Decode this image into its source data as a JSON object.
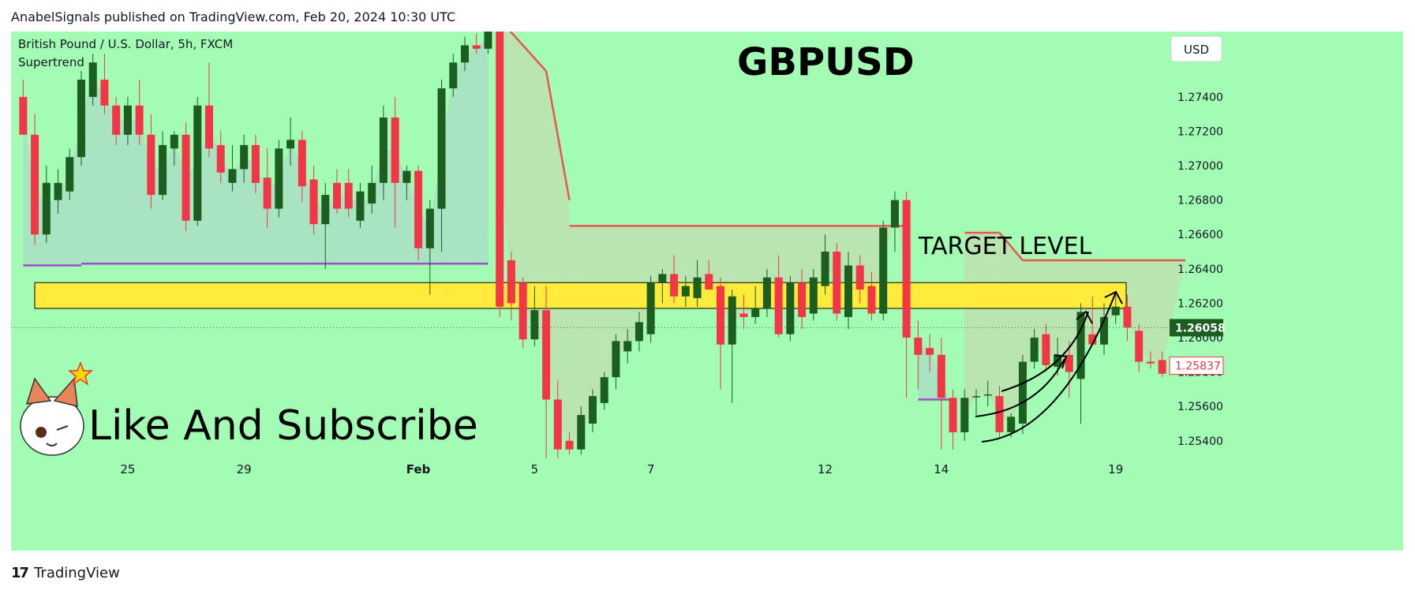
{
  "header": {
    "publish_line": "AnabelSignals published on TradingView.com, Feb 20, 2024 10:30 UTC"
  },
  "footer": {
    "brand_mark": "17",
    "brand_name": "TradingView"
  },
  "colors": {
    "background": "#a2fcb4",
    "bull": "#1b5e20",
    "bear": "#f23645",
    "supertrend_up": "#9c4dcc",
    "supertrend_down": "#ef5350",
    "zone": "#ffeb3b"
  },
  "chart_data": {
    "type": "candlestick",
    "symbol_line": "British Pound / U.S. Dollar, 5h, FXCM",
    "indicator": "Supertrend",
    "title": "GBPUSD",
    "currency": "USD",
    "ylim": [
      1.2528,
      1.2778
    ],
    "y_ticks": [
      "1.27400",
      "1.27200",
      "1.27000",
      "1.26800",
      "1.26600",
      "1.26400",
      "1.26200",
      "1.26000",
      "1.25800",
      "1.25600",
      "1.25400"
    ],
    "x_ticks": [
      {
        "label": "25",
        "index": 9
      },
      {
        "label": "29",
        "index": 19
      },
      {
        "label": "Feb",
        "index": 34
      },
      {
        "label": "5",
        "index": 44
      },
      {
        "label": "7",
        "index": 54
      },
      {
        "label": "12",
        "index": 69
      },
      {
        "label": "14",
        "index": 79
      },
      {
        "label": "19",
        "index": 94
      }
    ],
    "last_price": "1.26058",
    "current_price": "1.25837",
    "zone": {
      "low": 1.2617,
      "high": 1.2632,
      "label": "TARGET LEVEL"
    },
    "annotation": "Like And Subscribe",
    "candles": [
      {
        "o": 1.274,
        "h": 1.275,
        "l": 1.2718,
        "c": 1.2718
      },
      {
        "o": 1.2718,
        "h": 1.273,
        "l": 1.2654,
        "c": 1.266
      },
      {
        "o": 1.266,
        "h": 1.27,
        "l": 1.2655,
        "c": 1.269
      },
      {
        "o": 1.268,
        "h": 1.2698,
        "l": 1.2672,
        "c": 1.269
      },
      {
        "o": 1.2685,
        "h": 1.271,
        "l": 1.268,
        "c": 1.2705
      },
      {
        "o": 1.2705,
        "h": 1.2755,
        "l": 1.27,
        "c": 1.275
      },
      {
        "o": 1.274,
        "h": 1.2765,
        "l": 1.2735,
        "c": 1.276
      },
      {
        "o": 1.275,
        "h": 1.2765,
        "l": 1.273,
        "c": 1.2735
      },
      {
        "o": 1.2735,
        "h": 1.274,
        "l": 1.2712,
        "c": 1.2718
      },
      {
        "o": 1.2718,
        "h": 1.274,
        "l": 1.2712,
        "c": 1.2735
      },
      {
        "o": 1.2735,
        "h": 1.275,
        "l": 1.2712,
        "c": 1.2718
      },
      {
        "o": 1.2718,
        "h": 1.273,
        "l": 1.2675,
        "c": 1.2683
      },
      {
        "o": 1.2683,
        "h": 1.272,
        "l": 1.268,
        "c": 1.2712
      },
      {
        "o": 1.271,
        "h": 1.272,
        "l": 1.27,
        "c": 1.2718
      },
      {
        "o": 1.2718,
        "h": 1.2725,
        "l": 1.2662,
        "c": 1.2668
      },
      {
        "o": 1.2668,
        "h": 1.274,
        "l": 1.2665,
        "c": 1.2735
      },
      {
        "o": 1.2735,
        "h": 1.276,
        "l": 1.2705,
        "c": 1.271
      },
      {
        "o": 1.2712,
        "h": 1.272,
        "l": 1.269,
        "c": 1.2696
      },
      {
        "o": 1.269,
        "h": 1.2712,
        "l": 1.2685,
        "c": 1.2698
      },
      {
        "o": 1.2698,
        "h": 1.2718,
        "l": 1.269,
        "c": 1.2712
      },
      {
        "o": 1.2712,
        "h": 1.2718,
        "l": 1.2684,
        "c": 1.269
      },
      {
        "o": 1.2693,
        "h": 1.271,
        "l": 1.2664,
        "c": 1.2675
      },
      {
        "o": 1.2675,
        "h": 1.2715,
        "l": 1.267,
        "c": 1.271
      },
      {
        "o": 1.271,
        "h": 1.2728,
        "l": 1.27,
        "c": 1.2715
      },
      {
        "o": 1.2715,
        "h": 1.272,
        "l": 1.2679,
        "c": 1.2688
      },
      {
        "o": 1.2692,
        "h": 1.27,
        "l": 1.266,
        "c": 1.2666
      },
      {
        "o": 1.2666,
        "h": 1.269,
        "l": 1.264,
        "c": 1.2683
      },
      {
        "o": 1.269,
        "h": 1.2698,
        "l": 1.2672,
        "c": 1.2675
      },
      {
        "o": 1.269,
        "h": 1.2698,
        "l": 1.267,
        "c": 1.2675
      },
      {
        "o": 1.2668,
        "h": 1.269,
        "l": 1.2664,
        "c": 1.2685
      },
      {
        "o": 1.2678,
        "h": 1.27,
        "l": 1.2672,
        "c": 1.269
      },
      {
        "o": 1.269,
        "h": 1.2735,
        "l": 1.268,
        "c": 1.2728
      },
      {
        "o": 1.2728,
        "h": 1.274,
        "l": 1.2664,
        "c": 1.269
      },
      {
        "o": 1.269,
        "h": 1.27,
        "l": 1.268,
        "c": 1.2697
      },
      {
        "o": 1.2697,
        "h": 1.27,
        "l": 1.2645,
        "c": 1.2652
      },
      {
        "o": 1.2652,
        "h": 1.268,
        "l": 1.2625,
        "c": 1.2675
      },
      {
        "o": 1.2675,
        "h": 1.275,
        "l": 1.265,
        "c": 1.2745
      },
      {
        "o": 1.2745,
        "h": 1.2765,
        "l": 1.274,
        "c": 1.276
      },
      {
        "o": 1.276,
        "h": 1.2775,
        "l": 1.2755,
        "c": 1.277
      },
      {
        "o": 1.277,
        "h": 1.2777,
        "l": 1.2765,
        "c": 1.2768
      },
      {
        "o": 1.2768,
        "h": 1.2782,
        "l": 1.2765,
        "c": 1.278
      },
      {
        "o": 1.2783,
        "h": 1.279,
        "l": 1.2612,
        "c": 1.2618
      },
      {
        "o": 1.2645,
        "h": 1.265,
        "l": 1.261,
        "c": 1.262
      },
      {
        "o": 1.2632,
        "h": 1.2635,
        "l": 1.2594,
        "c": 1.2599
      },
      {
        "o": 1.2599,
        "h": 1.263,
        "l": 1.2595,
        "c": 1.2616
      },
      {
        "o": 1.2616,
        "h": 1.263,
        "l": 1.253,
        "c": 1.2564
      },
      {
        "o": 1.2564,
        "h": 1.2575,
        "l": 1.253,
        "c": 1.2535
      },
      {
        "o": 1.254,
        "h": 1.2545,
        "l": 1.2532,
        "c": 1.2535
      },
      {
        "o": 1.2535,
        "h": 1.256,
        "l": 1.2532,
        "c": 1.2555
      },
      {
        "o": 1.255,
        "h": 1.257,
        "l": 1.2545,
        "c": 1.2566
      },
      {
        "o": 1.2562,
        "h": 1.258,
        "l": 1.2558,
        "c": 1.2577
      },
      {
        "o": 1.2577,
        "h": 1.2602,
        "l": 1.257,
        "c": 1.2598
      },
      {
        "o": 1.2592,
        "h": 1.2605,
        "l": 1.2585,
        "c": 1.2598
      },
      {
        "o": 1.2598,
        "h": 1.2615,
        "l": 1.2592,
        "c": 1.2609
      },
      {
        "o": 1.2602,
        "h": 1.2636,
        "l": 1.2597,
        "c": 1.2632
      },
      {
        "o": 1.2632,
        "h": 1.264,
        "l": 1.262,
        "c": 1.2637
      },
      {
        "o": 1.2637,
        "h": 1.2648,
        "l": 1.262,
        "c": 1.2624
      },
      {
        "o": 1.2624,
        "h": 1.2636,
        "l": 1.2618,
        "c": 1.263
      },
      {
        "o": 1.2623,
        "h": 1.2645,
        "l": 1.2618,
        "c": 1.2635
      },
      {
        "o": 1.2637,
        "h": 1.2645,
        "l": 1.2628,
        "c": 1.2628
      },
      {
        "o": 1.263,
        "h": 1.2635,
        "l": 1.257,
        "c": 1.2596
      },
      {
        "o": 1.2596,
        "h": 1.2628,
        "l": 1.2562,
        "c": 1.2624
      },
      {
        "o": 1.2614,
        "h": 1.2625,
        "l": 1.2605,
        "c": 1.2612
      },
      {
        "o": 1.2612,
        "h": 1.263,
        "l": 1.2608,
        "c": 1.2617
      },
      {
        "o": 1.2617,
        "h": 1.264,
        "l": 1.2612,
        "c": 1.2635
      },
      {
        "o": 1.2635,
        "h": 1.2648,
        "l": 1.26,
        "c": 1.2602
      },
      {
        "o": 1.2602,
        "h": 1.2636,
        "l": 1.2598,
        "c": 1.2632
      },
      {
        "o": 1.2632,
        "h": 1.264,
        "l": 1.2605,
        "c": 1.2612
      },
      {
        "o": 1.2614,
        "h": 1.264,
        "l": 1.261,
        "c": 1.2635
      },
      {
        "o": 1.263,
        "h": 1.266,
        "l": 1.2625,
        "c": 1.265
      },
      {
        "o": 1.265,
        "h": 1.2655,
        "l": 1.261,
        "c": 1.2614
      },
      {
        "o": 1.2612,
        "h": 1.265,
        "l": 1.2605,
        "c": 1.2642
      },
      {
        "o": 1.2642,
        "h": 1.2648,
        "l": 1.262,
        "c": 1.2628
      },
      {
        "o": 1.263,
        "h": 1.2638,
        "l": 1.261,
        "c": 1.2614
      },
      {
        "o": 1.2614,
        "h": 1.2668,
        "l": 1.261,
        "c": 1.2664
      },
      {
        "o": 1.2664,
        "h": 1.2685,
        "l": 1.265,
        "c": 1.268
      },
      {
        "o": 1.268,
        "h": 1.2685,
        "l": 1.2565,
        "c": 1.26
      },
      {
        "o": 1.26,
        "h": 1.261,
        "l": 1.257,
        "c": 1.259
      },
      {
        "o": 1.2594,
        "h": 1.2602,
        "l": 1.258,
        "c": 1.259
      },
      {
        "o": 1.259,
        "h": 1.26,
        "l": 1.2535,
        "c": 1.2565
      },
      {
        "o": 1.2565,
        "h": 1.257,
        "l": 1.2535,
        "c": 1.2545
      },
      {
        "o": 1.2545,
        "h": 1.257,
        "l": 1.254,
        "c": 1.2565
      },
      {
        "o": 1.2566,
        "h": 1.257,
        "l": 1.2555,
        "c": 1.2566
      },
      {
        "o": 1.2567,
        "h": 1.2575,
        "l": 1.256,
        "c": 1.2567
      },
      {
        "o": 1.2566,
        "h": 1.2572,
        "l": 1.2542,
        "c": 1.2545
      },
      {
        "o": 1.2545,
        "h": 1.2556,
        "l": 1.2542,
        "c": 1.2554
      },
      {
        "o": 1.255,
        "h": 1.259,
        "l": 1.2544,
        "c": 1.2586
      },
      {
        "o": 1.2586,
        "h": 1.2605,
        "l": 1.2582,
        "c": 1.26
      },
      {
        "o": 1.2602,
        "h": 1.2608,
        "l": 1.258,
        "c": 1.2584
      },
      {
        "o": 1.2583,
        "h": 1.26,
        "l": 1.2578,
        "c": 1.259
      },
      {
        "o": 1.259,
        "h": 1.2598,
        "l": 1.2565,
        "c": 1.258
      },
      {
        "o": 1.2576,
        "h": 1.262,
        "l": 1.255,
        "c": 1.2615
      },
      {
        "o": 1.2602,
        "h": 1.2624,
        "l": 1.2595,
        "c": 1.2596
      },
      {
        "o": 1.2596,
        "h": 1.262,
        "l": 1.259,
        "c": 1.2612
      },
      {
        "o": 1.2613,
        "h": 1.2625,
        "l": 1.2608,
        "c": 1.2618
      },
      {
        "o": 1.2618,
        "h": 1.2625,
        "l": 1.2598,
        "c": 1.2606
      },
      {
        "o": 1.2604,
        "h": 1.2608,
        "l": 1.258,
        "c": 1.2586
      },
      {
        "o": 1.2586,
        "h": 1.2592,
        "l": 1.2582,
        "c": 1.2585
      },
      {
        "o": 1.2587,
        "h": 1.2592,
        "l": 1.2577,
        "c": 1.2579
      }
    ],
    "supertrend": [
      {
        "dir": "up",
        "from": 0,
        "to": 5,
        "v1": 1.2642,
        "v2": 1.2642
      },
      {
        "dir": "up",
        "from": 5,
        "to": 40,
        "v1": 1.2643,
        "v2": 1.2643
      },
      {
        "dir": "down",
        "from": 41,
        "to": 45,
        "v1": 1.2785,
        "v2": 1.2755
      },
      {
        "dir": "down",
        "from": 45,
        "to": 47,
        "v1": 1.2755,
        "v2": 1.268
      },
      {
        "dir": "down",
        "from": 47,
        "to": 76,
        "v1": 1.2665,
        "v2": 1.2665
      },
      {
        "dir": "up",
        "from": 77,
        "to": 80,
        "v1": 1.2564,
        "v2": 1.2564
      },
      {
        "dir": "down",
        "from": 81,
        "to": 84,
        "v1": 1.2661,
        "v2": 1.2661
      },
      {
        "dir": "down",
        "from": 84,
        "to": 86,
        "v1": 1.2661,
        "v2": 1.2645
      },
      {
        "dir": "down",
        "from": 86,
        "to": 100,
        "v1": 1.2645,
        "v2": 1.2645
      }
    ]
  }
}
